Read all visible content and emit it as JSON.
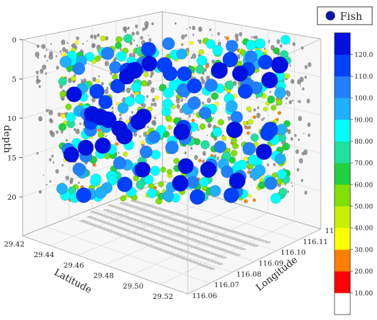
{
  "chart_data": {
    "type": "scatter",
    "title": "",
    "series": [
      {
        "name": "Fish"
      }
    ],
    "axes": {
      "latitude": {
        "label": "Latitude",
        "ticks": [
          "29.42",
          "29.44",
          "29.46",
          "29.48",
          "29.50",
          "29.52"
        ],
        "range": [
          29.42,
          29.53
        ]
      },
      "longitude": {
        "label": "Longitude",
        "ticks": [
          "116.06",
          "116.07",
          "116.08",
          "116.09",
          "116.10",
          "116.11",
          "116.12"
        ],
        "range": [
          116.06,
          116.12
        ]
      },
      "depth": {
        "label": "depth",
        "ticks": [
          "0",
          "5",
          "10",
          "15",
          "20"
        ],
        "range": [
          0,
          23
        ],
        "reversed": true
      }
    },
    "colorbar": {
      "ticks": [
        "10.00",
        "20.00",
        "30.00",
        "40.00",
        "50.00",
        "60.00",
        "70.00",
        "80.00",
        "90.00",
        "100.0",
        "110.0",
        "120.0"
      ],
      "range": [
        0,
        130
      ],
      "colors": [
        "#ffffff",
        "#ff0000",
        "#ff8000",
        "#ffff00",
        "#c8f000",
        "#80e000",
        "#20d040",
        "#20e0a0",
        "#00ffff",
        "#20b0ff",
        "#2080ff",
        "#0040ff",
        "#0010e0"
      ]
    },
    "grid": true,
    "legend_position": "top-right",
    "projection_color": "#808080"
  }
}
